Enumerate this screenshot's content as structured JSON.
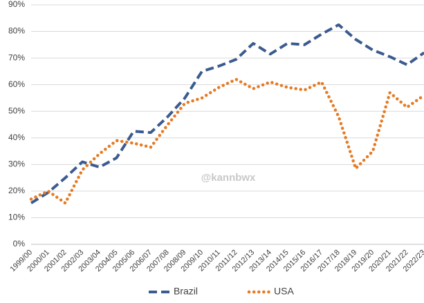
{
  "chart_data": {
    "type": "line",
    "categories": [
      "1999/00",
      "2000/01",
      "2001/02",
      "2002/03",
      "2003/04",
      "2004/05",
      "2005/06",
      "2006/07",
      "2007/08",
      "2008/09",
      "2009/10",
      "2010/11",
      "2011/12",
      "2012/13",
      "2013/14",
      "2014/15",
      "2015/16",
      "2016/17",
      "2017/18",
      "2018/19",
      "2019/20",
      "2020/21",
      "2021/22",
      "2022/23"
    ],
    "series": [
      {
        "name": "Brazil",
        "color": "#3b5b8f",
        "values": [
          15.5,
          19.5,
          25,
          31,
          29,
          32.5,
          42.5,
          42,
          48,
          55,
          65,
          67,
          69.5,
          75.5,
          71.5,
          75.5,
          75,
          79,
          82.5,
          77,
          73,
          70.5,
          67.5,
          72
        ]
      },
      {
        "name": "USA",
        "color": "#e57b25",
        "values": [
          17,
          20,
          15.5,
          28,
          34,
          39,
          38,
          36.5,
          45,
          53,
          55,
          59,
          62,
          58.5,
          61,
          59,
          58,
          61,
          48,
          28.5,
          35,
          57,
          51.5,
          56
        ]
      }
    ],
    "ylim": [
      0,
      90
    ],
    "yticks": [
      {
        "value": 0,
        "label": "0%"
      },
      {
        "value": 10,
        "label": "10%"
      },
      {
        "value": 20,
        "label": "20%"
      },
      {
        "value": 30,
        "label": "30%"
      },
      {
        "value": 40,
        "label": "40%"
      },
      {
        "value": 50,
        "label": "50%"
      },
      {
        "value": 60,
        "label": "60%"
      },
      {
        "value": 70,
        "label": "70%"
      },
      {
        "value": 80,
        "label": "80%"
      },
      {
        "value": 90,
        "label": "90%"
      }
    ],
    "grid": true,
    "legend": "bottom",
    "watermark": "@kannbwx"
  }
}
